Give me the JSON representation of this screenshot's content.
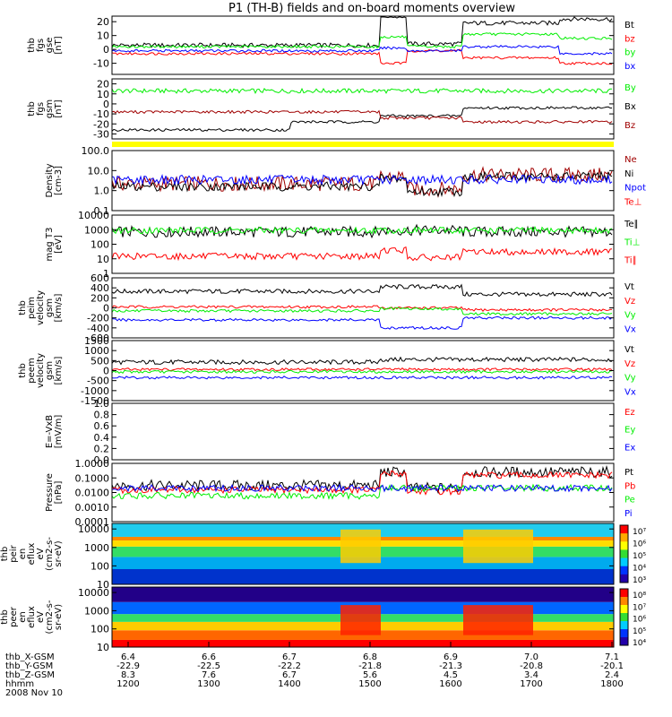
{
  "title": "P1 (TH-B) fields and on-board moments overview",
  "date_label": "2008 Nov 10",
  "x_axis": {
    "rows": [
      {
        "label": "thb_X-GSM",
        "values": [
          "6.4",
          "6.6",
          "6.7",
          "6.8",
          "6.9",
          "7.0",
          "7.1"
        ]
      },
      {
        "label": "thb_Y-GSM",
        "values": [
          "-22.9",
          "-22.5",
          "-22.2",
          "-21.8",
          "-21.3",
          "-20.8",
          "-20.1"
        ]
      },
      {
        "label": "thb_Z-GSM",
        "values": [
          "8.3",
          "7.6",
          "6.7",
          "5.6",
          "4.5",
          "3.4",
          "2.4"
        ]
      },
      {
        "label": "hhmm",
        "values": [
          "1200",
          "1300",
          "1400",
          "1500",
          "1600",
          "1700",
          "1800"
        ]
      }
    ]
  },
  "colors": {
    "black": "#000000",
    "red": "#ff0000",
    "green": "#00ee00",
    "blue": "#0000ff",
    "darkred": "#a00000",
    "yellow": "#ffff00"
  },
  "chart_data": [
    {
      "id": "fgs_gse",
      "type": "line",
      "ylabel": [
        "thb",
        "fgs",
        "gse",
        "[nT]"
      ],
      "ticks": [
        "20",
        "10",
        "0",
        "-10"
      ],
      "tick_values": [
        20,
        10,
        0,
        -10
      ],
      "ylim": [
        -18,
        24
      ],
      "series": [
        {
          "name": "Bt",
          "color": "#000000",
          "segments": [
            [
              0,
              300,
              3
            ],
            [
              300,
              330,
              24
            ],
            [
              330,
              392,
              4
            ],
            [
              392,
              500,
              19
            ],
            [
              500,
              560,
              22
            ]
          ]
        },
        {
          "name": "bz",
          "color": "#ff0000",
          "segments": [
            [
              0,
              300,
              -3
            ],
            [
              300,
              330,
              -10
            ],
            [
              330,
              392,
              -1
            ],
            [
              392,
              500,
              -6
            ],
            [
              500,
              560,
              -10
            ]
          ]
        },
        {
          "name": "by",
          "color": "#00ee00",
          "segments": [
            [
              0,
              300,
              2
            ],
            [
              300,
              330,
              9
            ],
            [
              330,
              392,
              2
            ],
            [
              392,
              500,
              11
            ],
            [
              500,
              560,
              8
            ]
          ]
        },
        {
          "name": "bx",
          "color": "#0000ff",
          "segments": [
            [
              0,
              300,
              -1
            ],
            [
              300,
              330,
              1
            ],
            [
              330,
              392,
              -1
            ],
            [
              392,
              500,
              2
            ],
            [
              500,
              560,
              -3
            ]
          ]
        }
      ]
    },
    {
      "id": "fgs_gsm",
      "type": "line",
      "ylabel": [
        "thb",
        "fgs",
        "gsm",
        "[nT]"
      ],
      "ticks": [
        "20",
        "10",
        "0",
        "-10",
        "-20",
        "-30"
      ],
      "tick_values": [
        20,
        10,
        0,
        -10,
        -20,
        -30
      ],
      "ylim": [
        -35,
        25
      ],
      "series": [
        {
          "name": "By",
          "color": "#00ee00",
          "segments": [
            [
              0,
              560,
              13
            ]
          ]
        },
        {
          "name": "Bx",
          "color": "#000000",
          "segments": [
            [
              0,
              200,
              -26
            ],
            [
              200,
              300,
              -18
            ],
            [
              300,
              392,
              -12
            ],
            [
              392,
              560,
              -4
            ]
          ]
        },
        {
          "name": "Bz",
          "color": "#a00000",
          "segments": [
            [
              0,
              300,
              -8
            ],
            [
              300,
              392,
              -14
            ],
            [
              392,
              560,
              -18
            ]
          ]
        }
      ]
    },
    {
      "id": "density",
      "type": "line",
      "log": true,
      "ylabel": [
        "Density",
        "[cm-3]"
      ],
      "ticks": [
        "100.0",
        "10.0",
        "1.0",
        "0.1"
      ],
      "tick_values": [
        100,
        10,
        1,
        0.1
      ],
      "ylim": [
        0.1,
        100
      ],
      "series": [
        {
          "name": "Ne",
          "color": "#a00000",
          "segments": [
            [
              0,
              300,
              2.2
            ],
            [
              300,
              330,
              5
            ],
            [
              330,
              392,
              1.2
            ],
            [
              392,
              560,
              6
            ]
          ]
        },
        {
          "name": "Ni",
          "color": "#000000",
          "segments": [
            [
              0,
              300,
              1.6
            ],
            [
              300,
              330,
              4
            ],
            [
              330,
              392,
              0.9
            ],
            [
              392,
              560,
              5
            ]
          ]
        },
        {
          "name": "Npot",
          "color": "#0000ff",
          "segments": [
            [
              0,
              560,
              3.5
            ]
          ]
        }
      ],
      "legend_extra": [
        "Te⊥"
      ]
    },
    {
      "id": "temperature",
      "type": "line",
      "log": true,
      "ylabel": [
        "mag T3",
        "[eV]"
      ],
      "ticks": [
        "10000",
        "1000",
        "100",
        "10",
        "1"
      ],
      "tick_values": [
        10000,
        1000,
        100,
        10,
        1
      ],
      "ylim": [
        1,
        10000
      ],
      "series": [
        {
          "name": "Te∥",
          "color": "#000000",
          "segments": [
            [
              0,
              300,
              700
            ],
            [
              300,
              392,
              900
            ],
            [
              392,
              560,
              700
            ]
          ]
        },
        {
          "name": "Ti⊥",
          "color": "#00ee00",
          "segments": [
            [
              0,
              560,
              900
            ]
          ]
        },
        {
          "name": "Ti∥",
          "color": "#ff0000",
          "segments": [
            [
              0,
              300,
              15
            ],
            [
              300,
              330,
              40
            ],
            [
              330,
              392,
              12
            ],
            [
              392,
              560,
              30
            ]
          ]
        }
      ]
    },
    {
      "id": "peim_velocity",
      "type": "line",
      "ylabel": [
        "thb",
        "peim",
        "velocity",
        "gsm",
        "[km/s]"
      ],
      "ticks": [
        "600",
        "400",
        "200",
        "0",
        "-200",
        "-400",
        "-600"
      ],
      "tick_values": [
        600,
        400,
        200,
        0,
        -200,
        -400,
        -600
      ],
      "ylim": [
        -600,
        600
      ],
      "series": [
        {
          "name": "Vt",
          "color": "#000000",
          "segments": [
            [
              0,
              300,
              330
            ],
            [
              300,
              392,
              420
            ],
            [
              392,
              560,
              270
            ]
          ]
        },
        {
          "name": "Vz",
          "color": "#ff0000",
          "segments": [
            [
              0,
              300,
              20
            ],
            [
              300,
              392,
              0
            ],
            [
              392,
              560,
              -40
            ]
          ]
        },
        {
          "name": "Vy",
          "color": "#00ee00",
          "segments": [
            [
              0,
              300,
              -60
            ],
            [
              300,
              392,
              -20
            ],
            [
              392,
              560,
              -120
            ]
          ]
        },
        {
          "name": "Vx",
          "color": "#0000ff",
          "segments": [
            [
              0,
              300,
              -240
            ],
            [
              300,
              392,
              -400
            ],
            [
              392,
              560,
              -200
            ]
          ]
        }
      ]
    },
    {
      "id": "peem_velocity",
      "type": "line",
      "ylabel": [
        "thb",
        "peem",
        "velocity",
        "gsm",
        "[km/s]"
      ],
      "ticks": [
        "1500",
        "1000",
        "500",
        "0",
        "-500",
        "-1000",
        "-1500"
      ],
      "tick_values": [
        1500,
        1000,
        500,
        0,
        -500,
        -1000,
        -1500
      ],
      "ylim": [
        -1500,
        1500
      ],
      "series": [
        {
          "name": "Vt",
          "color": "#000000",
          "segments": [
            [
              0,
              300,
              420
            ],
            [
              300,
              560,
              550
            ]
          ]
        },
        {
          "name": "Vz",
          "color": "#ff0000",
          "segments": [
            [
              0,
              560,
              60
            ]
          ]
        },
        {
          "name": "Vy",
          "color": "#00ee00",
          "segments": [
            [
              0,
              560,
              -60
            ]
          ]
        },
        {
          "name": "Vx",
          "color": "#0000ff",
          "segments": [
            [
              0,
              560,
              -350
            ]
          ]
        }
      ]
    },
    {
      "id": "efield",
      "type": "line",
      "ylabel": [
        "E=-VxB",
        "[mV/m]"
      ],
      "ticks": [
        "1.0",
        "0.8",
        "0.6",
        "0.4",
        "0.2",
        "0.0"
      ],
      "tick_values": [
        1.0,
        0.8,
        0.6,
        0.4,
        0.2,
        0.0
      ],
      "ylim": [
        0,
        1
      ],
      "series": [
        {
          "name": "Ez",
          "color": "#ff0000",
          "segments": []
        },
        {
          "name": "Ey",
          "color": "#00ee00",
          "segments": []
        },
        {
          "name": "Ex",
          "color": "#0000ff",
          "segments": []
        }
      ]
    },
    {
      "id": "pressure",
      "type": "line",
      "log": true,
      "ylabel": [
        "Pressure",
        "[nPa]"
      ],
      "ticks": [
        "1.0000",
        "0.1000",
        "0.0100",
        "0.0010",
        "0.0001"
      ],
      "tick_values": [
        1,
        0.1,
        0.01,
        0.001,
        0.0001
      ],
      "ylim": [
        0.0001,
        1
      ],
      "series": [
        {
          "name": "Pt",
          "color": "#000000",
          "segments": [
            [
              0,
              300,
              0.03
            ],
            [
              300,
              330,
              0.25
            ],
            [
              330,
              392,
              0.02
            ],
            [
              392,
              560,
              0.25
            ]
          ]
        },
        {
          "name": "Pb",
          "color": "#ff0000",
          "segments": [
            [
              0,
              300,
              0.015
            ],
            [
              300,
              330,
              0.2
            ],
            [
              330,
              392,
              0.012
            ],
            [
              392,
              560,
              0.15
            ]
          ]
        },
        {
          "name": "Pe",
          "color": "#00ee00",
          "segments": [
            [
              0,
              300,
              0.006
            ],
            [
              300,
              560,
              0.02
            ]
          ]
        },
        {
          "name": "Pi",
          "color": "#0000ff",
          "segments": [
            [
              0,
              560,
              0.02
            ]
          ]
        }
      ]
    },
    {
      "id": "peir_eflux",
      "type": "heatmap",
      "ylabel": [
        "thb",
        "peir",
        "en",
        "eflux",
        "eV",
        "(cm2-s-",
        "sr-eV)"
      ],
      "ticks": [
        "10000",
        "1000",
        "100",
        "10"
      ],
      "tick_values": [
        10000,
        1000,
        100,
        10
      ],
      "ylim": [
        10,
        20000
      ],
      "colorbar": [
        "10⁷",
        "10⁶",
        "10⁵",
        "10⁴",
        "10³"
      ]
    },
    {
      "id": "peer_eflux",
      "type": "heatmap",
      "ylabel": [
        "thb",
        "peer",
        "en",
        "eflux",
        "eV",
        "(cm2-s-",
        "sr-eV)"
      ],
      "ticks": [
        "10000",
        "1000",
        "100",
        "10"
      ],
      "tick_values": [
        10000,
        1000,
        100,
        10
      ],
      "ylim": [
        10,
        20000
      ],
      "colorbar": [
        "10⁸",
        "10⁷",
        "10⁶",
        "10⁵",
        "10⁴"
      ]
    }
  ]
}
